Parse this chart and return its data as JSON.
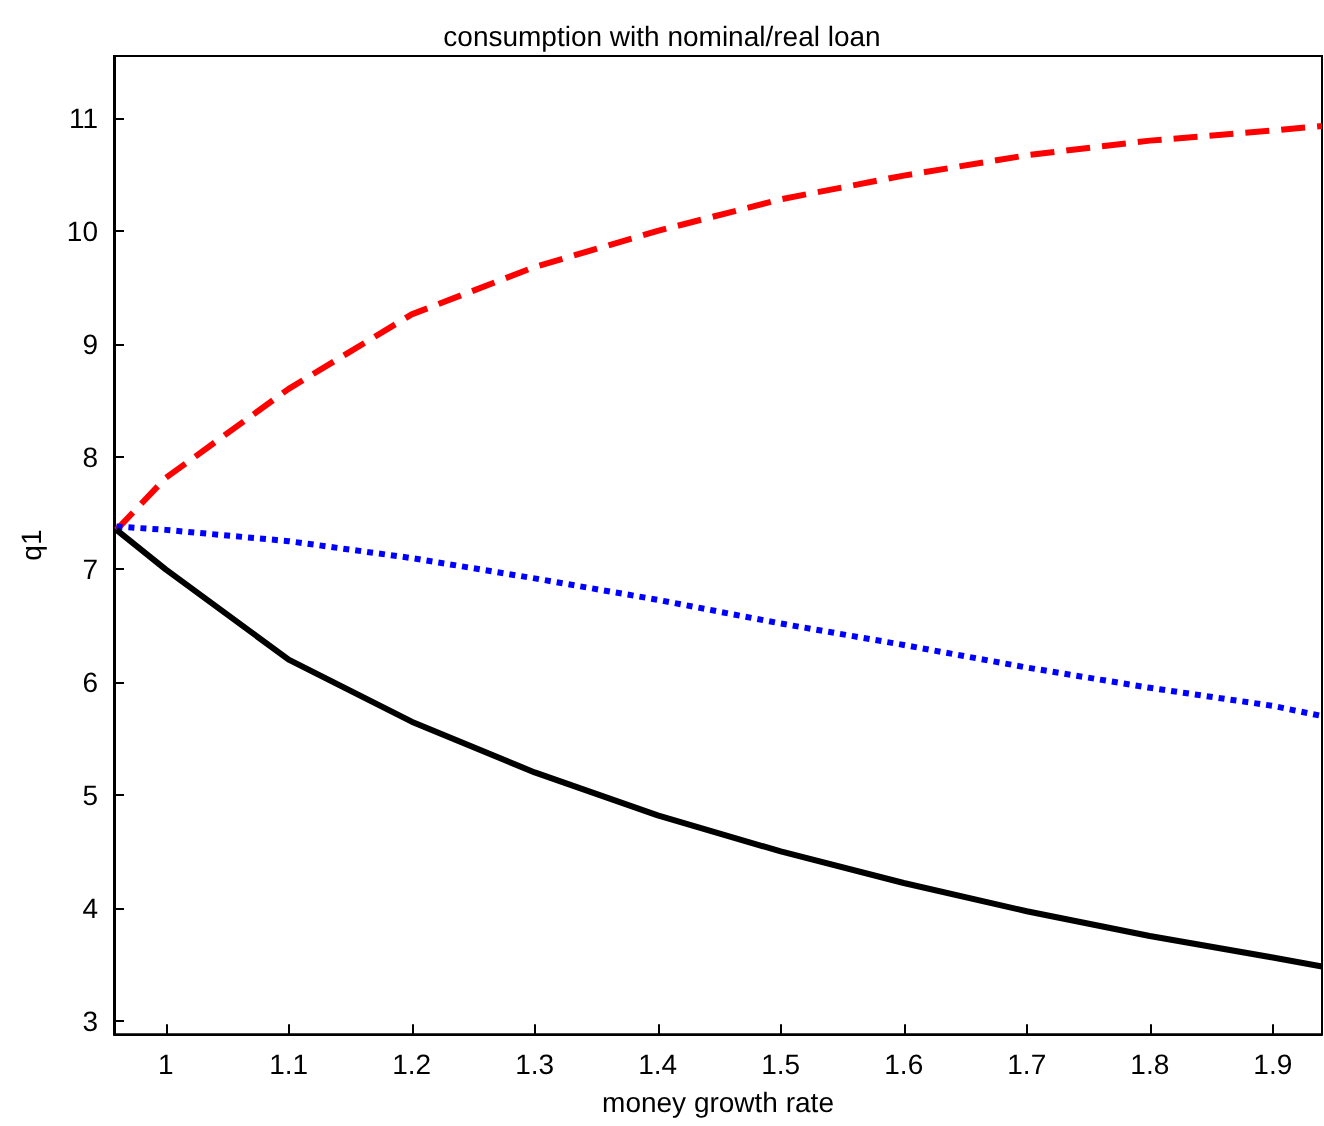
{
  "chart_data": {
    "type": "line",
    "title": "consumption with nominal/real loan",
    "xlabel": "money growth rate",
    "ylabel": "q1",
    "x": [
      0.96,
      1.0,
      1.1,
      1.2,
      1.3,
      1.4,
      1.5,
      1.6,
      1.7,
      1.8,
      1.9,
      1.94
    ],
    "series": [
      {
        "color": "#ff0000",
        "line_style": "dashed",
        "values": [
          7.35,
          7.81,
          8.6,
          9.26,
          9.68,
          10.0,
          10.28,
          10.49,
          10.67,
          10.8,
          10.89,
          10.93
        ]
      },
      {
        "color": "#0000ff",
        "line_style": "dotted",
        "values": [
          7.38,
          7.35,
          7.25,
          7.1,
          6.92,
          6.73,
          6.52,
          6.33,
          6.13,
          5.95,
          5.79,
          5.7
        ]
      },
      {
        "color": "#000000",
        "line_style": "solid",
        "values": [
          7.35,
          7.0,
          6.2,
          5.65,
          5.2,
          4.82,
          4.5,
          4.22,
          3.97,
          3.75,
          3.56,
          3.48
        ]
      }
    ],
    "xlim": [
      0.958,
      1.94
    ],
    "ylim": [
      2.88,
      11.55
    ],
    "xticks": [
      1,
      1.1,
      1.2,
      1.3,
      1.4,
      1.5,
      1.6,
      1.7,
      1.8,
      1.9
    ],
    "yticks": [
      3,
      4,
      5,
      6,
      7,
      8,
      9,
      10,
      11
    ],
    "marker": "none"
  }
}
